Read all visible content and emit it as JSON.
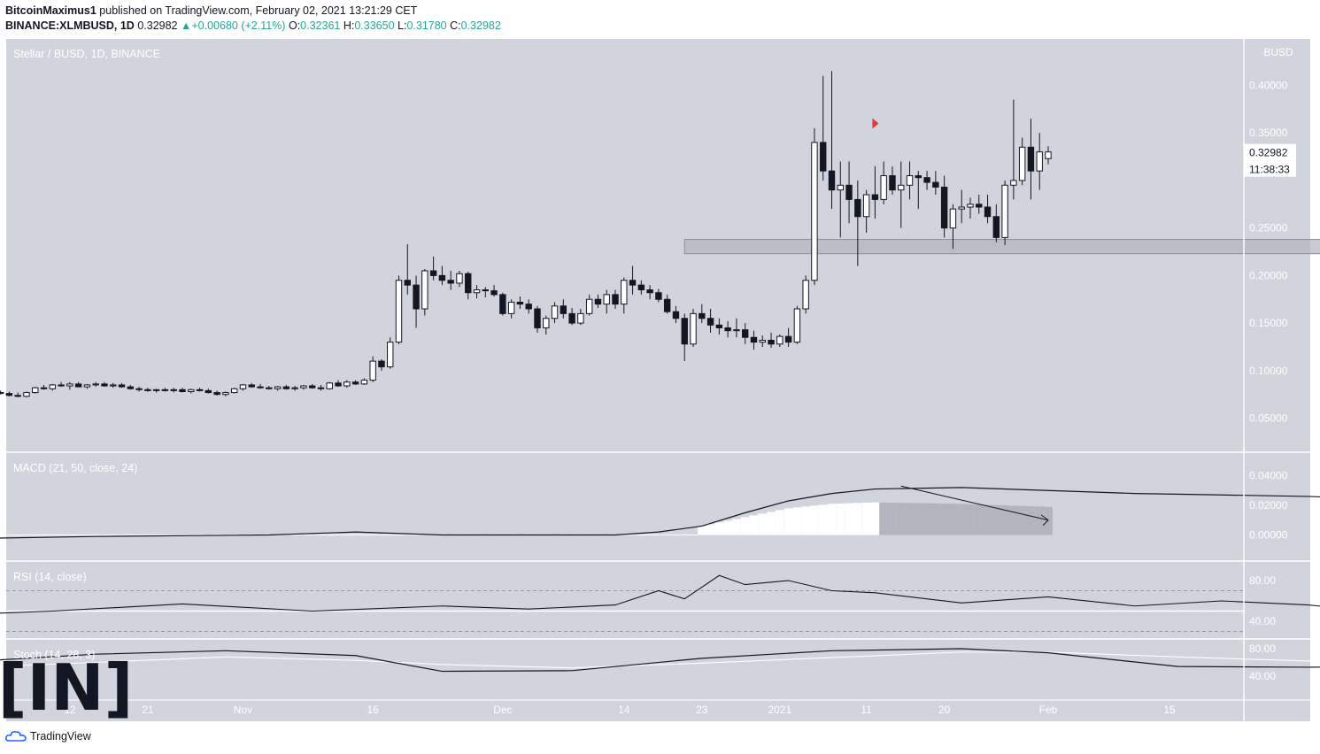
{
  "header": {
    "author": "BitcoinMaximus1",
    "published_text": "published on TradingView.com, February 02, 2021 13:21:29 CET",
    "symbol": "BINANCE:XLMBUSD, 1D",
    "last": "0.32982",
    "change": "+0.00680 (+2.11%)",
    "o_label": "O:",
    "o": "0.32361",
    "h_label": "H:",
    "h": "0.33650",
    "l_label": "L:",
    "l": "0.31780",
    "c_label": "C:",
    "c": "0.32982",
    "up_glyph": "▲"
  },
  "footer": {
    "brand": "TradingView",
    "logo_icon": "tradingview-cloud-icon"
  },
  "watermark": {
    "text": "[IN]",
    "icon": "beincrypto-logo"
  },
  "colors": {
    "background": "#d1d4dc",
    "candle_up": "#ffffff",
    "candle_down": "#131722",
    "signal": "#e53935",
    "zone": "#b2b5be"
  },
  "chart_data": [
    {
      "type": "candlestick",
      "title": "Stellar / BUSD, 1D, BINANCE",
      "currency": "BUSD",
      "ylim": [
        0.0,
        0.42
      ],
      "yticks": [
        "0.05000",
        "0.10000",
        "0.15000",
        "0.20000",
        "0.25000",
        "0.35000",
        "0.40000"
      ],
      "price_label": "0.32982",
      "countdown_label": "11:38:33",
      "x_tick_labels": [
        "12",
        "21",
        "Nov",
        "16",
        "Dec",
        "14",
        "23",
        "2021",
        "11",
        "20",
        "Feb",
        "15"
      ],
      "x_tick_day_index": [
        0,
        9,
        20,
        35,
        50,
        64,
        73,
        82,
        92,
        101,
        113,
        127
      ],
      "support_zone": [
        0.223,
        0.238
      ],
      "support_zone_days": [
        -42,
        84
      ],
      "signal_markers": [
        {
          "day": -20,
          "price": 0.36
        },
        {
          "day": 107,
          "price": 0.357
        }
      ],
      "ohlc": [
        [
          0.074,
          0.076,
          0.072,
          0.073
        ],
        [
          0.073,
          0.075,
          0.071,
          0.074
        ],
        [
          0.074,
          0.076,
          0.072,
          0.073
        ],
        [
          0.073,
          0.075,
          0.071,
          0.072
        ],
        [
          0.072,
          0.076,
          0.071,
          0.075
        ],
        [
          0.075,
          0.078,
          0.073,
          0.076
        ],
        [
          0.076,
          0.079,
          0.074,
          0.077
        ],
        [
          0.077,
          0.079,
          0.075,
          0.076
        ],
        [
          0.076,
          0.079,
          0.074,
          0.078
        ],
        [
          0.078,
          0.08,
          0.075,
          0.077
        ],
        [
          0.077,
          0.079,
          0.075,
          0.076
        ],
        [
          0.076,
          0.078,
          0.073,
          0.074
        ],
        [
          0.074,
          0.077,
          0.072,
          0.073
        ],
        [
          0.073,
          0.078,
          0.072,
          0.077
        ],
        [
          0.077,
          0.083,
          0.076,
          0.082
        ],
        [
          0.082,
          0.085,
          0.08,
          0.081
        ],
        [
          0.081,
          0.086,
          0.079,
          0.085
        ],
        [
          0.085,
          0.088,
          0.083,
          0.084
        ],
        [
          0.084,
          0.088,
          0.08,
          0.086
        ],
        [
          0.086,
          0.088,
          0.083,
          0.083
        ],
        [
          0.083,
          0.086,
          0.081,
          0.085
        ],
        [
          0.085,
          0.088,
          0.083,
          0.086
        ],
        [
          0.086,
          0.088,
          0.083,
          0.084
        ],
        [
          0.084,
          0.087,
          0.082,
          0.085
        ],
        [
          0.085,
          0.087,
          0.082,
          0.083
        ],
        [
          0.083,
          0.085,
          0.08,
          0.081
        ],
        [
          0.081,
          0.083,
          0.078,
          0.08
        ],
        [
          0.08,
          0.082,
          0.078,
          0.079
        ],
        [
          0.079,
          0.081,
          0.077,
          0.08
        ],
        [
          0.08,
          0.082,
          0.078,
          0.079
        ],
        [
          0.079,
          0.082,
          0.077,
          0.08
        ],
        [
          0.08,
          0.082,
          0.077,
          0.078
        ],
        [
          0.078,
          0.081,
          0.076,
          0.08
        ],
        [
          0.08,
          0.082,
          0.078,
          0.079
        ],
        [
          0.079,
          0.081,
          0.076,
          0.077
        ],
        [
          0.077,
          0.079,
          0.074,
          0.075
        ],
        [
          0.075,
          0.078,
          0.073,
          0.077
        ],
        [
          0.077,
          0.082,
          0.076,
          0.081
        ],
        [
          0.081,
          0.086,
          0.079,
          0.085
        ],
        [
          0.085,
          0.087,
          0.082,
          0.083
        ],
        [
          0.083,
          0.086,
          0.081,
          0.082
        ],
        [
          0.082,
          0.084,
          0.08,
          0.081
        ],
        [
          0.081,
          0.084,
          0.079,
          0.083
        ],
        [
          0.083,
          0.085,
          0.08,
          0.081
        ],
        [
          0.081,
          0.084,
          0.079,
          0.082
        ],
        [
          0.082,
          0.085,
          0.08,
          0.084
        ],
        [
          0.084,
          0.086,
          0.081,
          0.082
        ],
        [
          0.082,
          0.085,
          0.079,
          0.081
        ],
        [
          0.081,
          0.088,
          0.08,
          0.087
        ],
        [
          0.087,
          0.09,
          0.083,
          0.084
        ],
        [
          0.084,
          0.09,
          0.082,
          0.088
        ],
        [
          0.088,
          0.09,
          0.085,
          0.086
        ],
        [
          0.086,
          0.092,
          0.085,
          0.09
        ],
        [
          0.09,
          0.115,
          0.088,
          0.11
        ],
        [
          0.11,
          0.112,
          0.1,
          0.104
        ],
        [
          0.104,
          0.135,
          0.102,
          0.13
        ],
        [
          0.13,
          0.2,
          0.128,
          0.195
        ],
        [
          0.195,
          0.233,
          0.18,
          0.19
        ],
        [
          0.19,
          0.2,
          0.145,
          0.165
        ],
        [
          0.165,
          0.207,
          0.158,
          0.205
        ],
        [
          0.205,
          0.22,
          0.195,
          0.2
        ],
        [
          0.2,
          0.21,
          0.19,
          0.195
        ],
        [
          0.195,
          0.205,
          0.185,
          0.192
        ],
        [
          0.192,
          0.205,
          0.188,
          0.202
        ],
        [
          0.202,
          0.204,
          0.175,
          0.182
        ],
        [
          0.182,
          0.19,
          0.176,
          0.185
        ],
        [
          0.185,
          0.188,
          0.177,
          0.184
        ],
        [
          0.184,
          0.19,
          0.178,
          0.18
        ],
        [
          0.18,
          0.182,
          0.158,
          0.16
        ],
        [
          0.16,
          0.175,
          0.155,
          0.172
        ],
        [
          0.172,
          0.178,
          0.165,
          0.17
        ],
        [
          0.17,
          0.175,
          0.16,
          0.165
        ],
        [
          0.165,
          0.168,
          0.14,
          0.145
        ],
        [
          0.145,
          0.158,
          0.138,
          0.155
        ],
        [
          0.155,
          0.172,
          0.15,
          0.168
        ],
        [
          0.168,
          0.175,
          0.155,
          0.16
        ],
        [
          0.16,
          0.166,
          0.148,
          0.15
        ],
        [
          0.15,
          0.165,
          0.148,
          0.16
        ],
        [
          0.16,
          0.18,
          0.158,
          0.175
        ],
        [
          0.175,
          0.18,
          0.166,
          0.17
        ],
        [
          0.17,
          0.185,
          0.16,
          0.18
        ],
        [
          0.18,
          0.185,
          0.165,
          0.17
        ],
        [
          0.17,
          0.198,
          0.16,
          0.195
        ],
        [
          0.195,
          0.21,
          0.18,
          0.19
        ],
        [
          0.19,
          0.195,
          0.18,
          0.185
        ],
        [
          0.185,
          0.19,
          0.175,
          0.182
        ],
        [
          0.182,
          0.186,
          0.172,
          0.175
        ],
        [
          0.175,
          0.18,
          0.16,
          0.162
        ],
        [
          0.162,
          0.168,
          0.15,
          0.155
        ],
        [
          0.155,
          0.16,
          0.11,
          0.128
        ],
        [
          0.128,
          0.165,
          0.125,
          0.16
        ],
        [
          0.16,
          0.17,
          0.15,
          0.155
        ],
        [
          0.155,
          0.165,
          0.14,
          0.148
        ],
        [
          0.148,
          0.155,
          0.138,
          0.145
        ],
        [
          0.145,
          0.152,
          0.135,
          0.142
        ],
        [
          0.142,
          0.155,
          0.135,
          0.143
        ],
        [
          0.143,
          0.15,
          0.128,
          0.135
        ],
        [
          0.135,
          0.142,
          0.122,
          0.13
        ],
        [
          0.13,
          0.137,
          0.125,
          0.132
        ],
        [
          0.132,
          0.14,
          0.124,
          0.128
        ],
        [
          0.128,
          0.138,
          0.125,
          0.136
        ],
        [
          0.136,
          0.145,
          0.125,
          0.13
        ],
        [
          0.13,
          0.168,
          0.128,
          0.165
        ],
        [
          0.165,
          0.2,
          0.16,
          0.195
        ],
        [
          0.195,
          0.355,
          0.19,
          0.34
        ],
        [
          0.34,
          0.41,
          0.3,
          0.31
        ],
        [
          0.31,
          0.415,
          0.27,
          0.29
        ],
        [
          0.29,
          0.32,
          0.24,
          0.295
        ],
        [
          0.295,
          0.32,
          0.255,
          0.28
        ],
        [
          0.28,
          0.3,
          0.21,
          0.262
        ],
        [
          0.262,
          0.29,
          0.245,
          0.285
        ],
        [
          0.285,
          0.315,
          0.26,
          0.28
        ],
        [
          0.28,
          0.32,
          0.275,
          0.305
        ],
        [
          0.305,
          0.315,
          0.285,
          0.29
        ],
        [
          0.29,
          0.32,
          0.25,
          0.295
        ],
        [
          0.295,
          0.32,
          0.28,
          0.305
        ],
        [
          0.305,
          0.31,
          0.27,
          0.303
        ],
        [
          0.303,
          0.31,
          0.29,
          0.298
        ],
        [
          0.298,
          0.31,
          0.285,
          0.293
        ],
        [
          0.293,
          0.305,
          0.24,
          0.25
        ],
        [
          0.25,
          0.275,
          0.228,
          0.27
        ],
        [
          0.27,
          0.29,
          0.255,
          0.272
        ],
        [
          0.272,
          0.282,
          0.26,
          0.275
        ],
        [
          0.275,
          0.285,
          0.265,
          0.272
        ],
        [
          0.272,
          0.285,
          0.255,
          0.262
        ],
        [
          0.262,
          0.275,
          0.235,
          0.24
        ],
        [
          0.24,
          0.3,
          0.232,
          0.295
        ],
        [
          0.295,
          0.385,
          0.28,
          0.3
        ],
        [
          0.3,
          0.345,
          0.295,
          0.335
        ],
        [
          0.335,
          0.365,
          0.28,
          0.31
        ],
        [
          0.31,
          0.35,
          0.29,
          0.33
        ],
        [
          0.323,
          0.336,
          0.317,
          0.33
        ]
      ]
    },
    {
      "type": "line",
      "title": "MACD (21, 50, close, 24)",
      "ylim": [
        -0.012,
        0.055
      ],
      "yticks": [
        "0.00000",
        "0.02000",
        "0.04000"
      ],
      "x_day": [
        -130,
        -110,
        -90,
        -80,
        -70,
        -60,
        -50,
        -45,
        -40,
        -35,
        -30,
        -25,
        -20,
        -10,
        0,
        10,
        20,
        30,
        40,
        50,
        60,
        65,
        70,
        75,
        78,
        81,
        83,
        86,
        88,
        91,
        94,
        97,
        100,
        103,
        107,
        110,
        113
      ],
      "macd": [
        -0.003,
        -0.001,
        0.0,
        0.002,
        0.0,
        0.0,
        0.0,
        0.002,
        0.006,
        0.015,
        0.023,
        0.028,
        0.031,
        0.032,
        0.03,
        0.028,
        0.027,
        0.026,
        0.024,
        0.021,
        0.016,
        0.012,
        0.008,
        0.004,
        0.003,
        0.005,
        0.011,
        0.021,
        0.031,
        0.037,
        0.041,
        0.045,
        0.048,
        0.05,
        0.05,
        0.046,
        0.041
      ],
      "histogram_x_day": [
        -40,
        -35,
        -30,
        -25,
        -20,
        -10,
        0,
        10,
        20,
        30,
        40,
        50,
        60,
        65,
        70,
        75,
        78,
        81,
        83,
        86,
        88,
        91,
        94,
        97,
        100,
        103,
        107,
        110,
        113
      ],
      "histogram": [
        0.006,
        0.012,
        0.018,
        0.021,
        0.022,
        0.021,
        0.019,
        0.016,
        0.012,
        0.008,
        0.004,
        0.001,
        -0.002,
        -0.005,
        -0.009,
        -0.011,
        -0.011,
        -0.009,
        -0.005,
        0.004,
        0.01,
        0.016,
        0.019,
        0.019,
        0.018,
        0.014,
        0.006,
        0.001,
        0.002
      ]
    },
    {
      "type": "line",
      "title": "RSI (14, close)",
      "ylim": [
        30,
        95
      ],
      "yticks": [
        "40.00",
        "80.00"
      ],
      "levels": [
        70,
        50,
        30
      ],
      "x_day": [
        -130,
        -115,
        -100,
        -85,
        -70,
        -60,
        -50,
        -45,
        -42,
        -38,
        -35,
        -30,
        -25,
        -20,
        -10,
        0,
        10,
        20,
        30,
        40,
        50,
        60,
        65,
        70,
        75,
        78,
        81,
        83,
        86,
        88,
        92,
        96,
        100,
        104,
        108,
        112
      ],
      "rsi": [
        45,
        50,
        57,
        50,
        55,
        52,
        56,
        70,
        62,
        85,
        76,
        80,
        70,
        68,
        58,
        64,
        55,
        60,
        56,
        48,
        57,
        40,
        45,
        42,
        48,
        44,
        48,
        60,
        82,
        76,
        64,
        62,
        68,
        53,
        58,
        66
      ]
    },
    {
      "type": "line",
      "title": "Stoch (14, 28, 3)",
      "ylim": [
        20,
        90
      ],
      "yticks": [
        "40.00",
        "80.00"
      ],
      "x_day": [
        -130,
        -110,
        -95,
        -80,
        -70,
        -55,
        -40,
        -25,
        -10,
        0,
        15,
        30,
        45,
        60,
        70,
        82,
        88,
        92,
        100,
        105,
        110,
        113
      ],
      "stoch_k": [
        57,
        72,
        77,
        70,
        47,
        48,
        66,
        77,
        80,
        74,
        54,
        53,
        55,
        47,
        38,
        45,
        50,
        53,
        64,
        58,
        51,
        47
      ],
      "stoch_d": [
        50,
        60,
        68,
        63,
        57,
        52,
        59,
        67,
        75,
        75,
        68,
        62,
        57,
        52,
        46,
        44,
        45,
        48,
        53,
        55,
        53,
        51
      ]
    }
  ]
}
